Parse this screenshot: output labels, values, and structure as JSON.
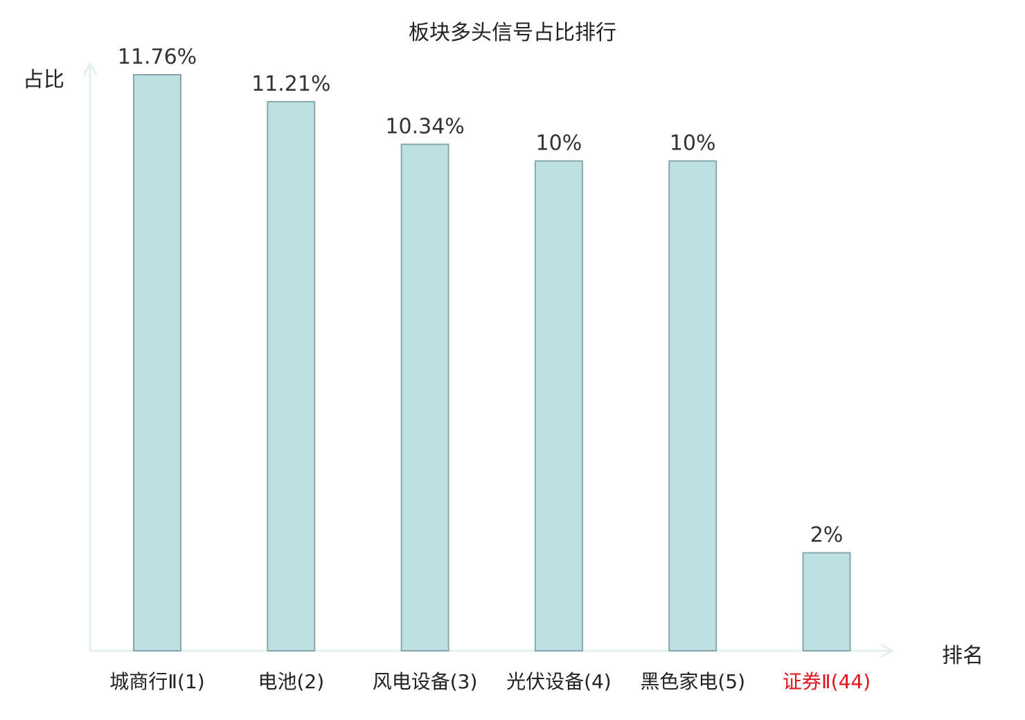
{
  "chart_data": {
    "type": "bar",
    "title": "板块多头信号占比排行",
    "ylabel": "占比",
    "xlabel": "排名",
    "categories": [
      "城商行Ⅱ(1)",
      "电池(2)",
      "风电设备(3)",
      "光伏设备(4)",
      "黑色家电(5)",
      "证券Ⅱ(44)"
    ],
    "values": [
      11.76,
      11.21,
      10.34,
      10,
      10,
      2
    ],
    "value_labels": [
      "11.76%",
      "11.21%",
      "10.34%",
      "10%",
      "10%",
      "2%"
    ],
    "highlight_index": 5,
    "ylim": [
      0,
      12
    ],
    "grid": false,
    "colors": {
      "bar_fill": "#bde0e3",
      "bar_stroke": "#86a8ab",
      "axis": "#e0f1ee",
      "label_text": "#333333",
      "highlight_text": "#e0141e"
    }
  }
}
